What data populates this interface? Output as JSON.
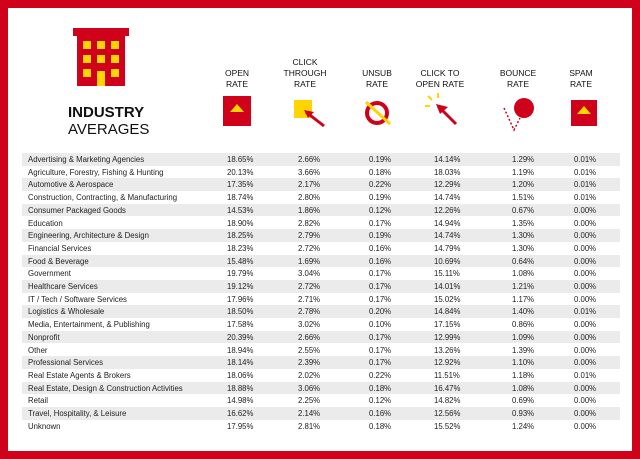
{
  "header": {
    "title_bold": "INDUSTRY",
    "title_light": "AVERAGES"
  },
  "table": {
    "columns": [
      [
        "OPEN",
        "RATE"
      ],
      [
        "CLICK",
        "THROUGH",
        "RATE"
      ],
      [
        "UNSUB",
        "RATE"
      ],
      [
        "CLICK TO",
        "OPEN RATE"
      ],
      [
        "BOUNCE",
        "RATE"
      ],
      [
        "SPAM",
        "RATE"
      ]
    ],
    "rows": [
      [
        "Advertising & Marketing Agencies",
        "18.65%",
        "2.66%",
        "0.19%",
        "14.14%",
        "1.29%",
        "0.01%"
      ],
      [
        "Agriculture, Forestry, Fishing & Hunting",
        "20.13%",
        "3.66%",
        "0.18%",
        "18.03%",
        "1.19%",
        "0.01%"
      ],
      [
        "Automotive & Aerospace",
        "17.35%",
        "2.17%",
        "0.22%",
        "12.29%",
        "1.20%",
        "0.01%"
      ],
      [
        "Construction, Contracting, & Manufacturing",
        "18.74%",
        "2.80%",
        "0.19%",
        "14.74%",
        "1.51%",
        "0.01%"
      ],
      [
        "Consumer Packaged Goods",
        "14.53%",
        "1.86%",
        "0.12%",
        "12.26%",
        "0.67%",
        "0.00%"
      ],
      [
        "Education",
        "18.90%",
        "2.82%",
        "0.17%",
        "14.94%",
        "1.35%",
        "0.00%"
      ],
      [
        "Engineering, Architecture & Design",
        "18.25%",
        "2.79%",
        "0.19%",
        "14.74%",
        "1.30%",
        "0.00%"
      ],
      [
        "Financial Services",
        "18.23%",
        "2.72%",
        "0.16%",
        "14.79%",
        "1.30%",
        "0.00%"
      ],
      [
        "Food & Beverage",
        "15.48%",
        "1.69%",
        "0.16%",
        "10.69%",
        "0.64%",
        "0.00%"
      ],
      [
        "Government",
        "19.79%",
        "3.04%",
        "0.17%",
        "15.11%",
        "1.08%",
        "0.00%"
      ],
      [
        "Healthcare Services",
        "19.12%",
        "2.72%",
        "0.17%",
        "14.01%",
        "1.21%",
        "0.00%"
      ],
      [
        "IT / Tech / Software Services",
        "17.96%",
        "2.71%",
        "0.17%",
        "15.02%",
        "1.17%",
        "0.00%"
      ],
      [
        "Logistics & Wholesale",
        "18.50%",
        "2.78%",
        "0.20%",
        "14.84%",
        "1.40%",
        "0.01%"
      ],
      [
        "Media, Entertainment, & Publishing",
        "17.58%",
        "3.02%",
        "0.10%",
        "17.15%",
        "0.86%",
        "0.00%"
      ],
      [
        "Nonprofit",
        "20.39%",
        "2.66%",
        "0.17%",
        "12.99%",
        "1.09%",
        "0.00%"
      ],
      [
        "Other",
        "18.94%",
        "2.55%",
        "0.17%",
        "13.26%",
        "1.39%",
        "0.00%"
      ],
      [
        "Professional Services",
        "18.14%",
        "2.39%",
        "0.17%",
        "12.92%",
        "1.10%",
        "0.00%"
      ],
      [
        "Real Estate Agents & Brokers",
        "18.06%",
        "2.02%",
        "0.22%",
        "11.51%",
        "1.18%",
        "0.01%"
      ],
      [
        "Real Estate, Design & Construction Activities",
        "18.88%",
        "3.06%",
        "0.18%",
        "16.47%",
        "1.08%",
        "0.00%"
      ],
      [
        "Retail",
        "14.98%",
        "2.25%",
        "0.12%",
        "14.82%",
        "0.69%",
        "0.00%"
      ],
      [
        "Travel, Hospitality, & Leisure",
        "16.62%",
        "2.14%",
        "0.16%",
        "12.56%",
        "0.93%",
        "0.00%"
      ],
      [
        "Unknown",
        "17.95%",
        "2.81%",
        "0.18%",
        "15.52%",
        "1.24%",
        "0.00%"
      ]
    ]
  }
}
